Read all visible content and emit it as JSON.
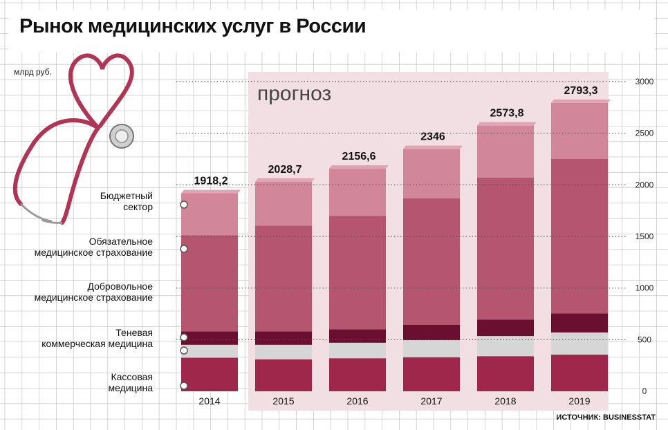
{
  "title": "Рынок медицинских услуг в России",
  "source": "ИСТОЧНИК: BUSINESSTAT",
  "colors": {
    "budget": "#d2869a",
    "oms": "#b5556f",
    "dms": "#6a0f30",
    "shadow": "#d6d6d6",
    "cash": "#a0274c",
    "forecast_bg": "#f2dfe3",
    "grid": "#cccccc"
  },
  "illustration": "stethoscope-heart-icon",
  "chart_data": {
    "type": "bar",
    "stacked": true,
    "unit": "млрд руб.",
    "forecast_label": "прогноз",
    "forecast_from": "2015",
    "categories": [
      "2014",
      "2015",
      "2016",
      "2017",
      "2018",
      "2019"
    ],
    "totals": [
      "1918,2",
      "2028,7",
      "2156,6",
      "2346",
      "2573,8",
      "2793,3"
    ],
    "series": [
      {
        "key": "cash",
        "name": "Кассовая медицина",
        "values": [
          325,
          310,
          320,
          330,
          340,
          355
        ]
      },
      {
        "key": "shadow",
        "name": "Теневая коммерческая медицина",
        "values": [
          125,
          140,
          150,
          165,
          195,
          215
        ]
      },
      {
        "key": "dms",
        "name": "Добровольное медицинское страхование",
        "values": [
          130,
          130,
          130,
          150,
          160,
          185
        ]
      },
      {
        "key": "oms",
        "name": "Обязательное медицинское страхование",
        "values": [
          930,
          1025,
          1100,
          1225,
          1375,
          1495
        ]
      },
      {
        "key": "budget",
        "name": "Бюджетный сектор",
        "values": [
          408.2,
          423.7,
          456.6,
          476,
          503.8,
          543.3
        ]
      }
    ],
    "legend_labels": [
      {
        "key": "budget",
        "lines": [
          "Бюджетный",
          "сектор"
        ]
      },
      {
        "key": "oms",
        "lines": [
          "Обязательное",
          "медицинское страхование"
        ]
      },
      {
        "key": "dms",
        "lines": [
          "Добровольное",
          "медицинское страхование"
        ]
      },
      {
        "key": "shadow",
        "lines": [
          "Теневая",
          "коммерческая медицина"
        ]
      },
      {
        "key": "cash",
        "lines": [
          "Кассовая",
          "медицина"
        ]
      }
    ],
    "ylim": [
      0,
      3000
    ],
    "yticks": [
      0,
      500,
      1000,
      1500,
      2000,
      2500,
      3000
    ],
    "legend_position": "left",
    "grid": true
  }
}
